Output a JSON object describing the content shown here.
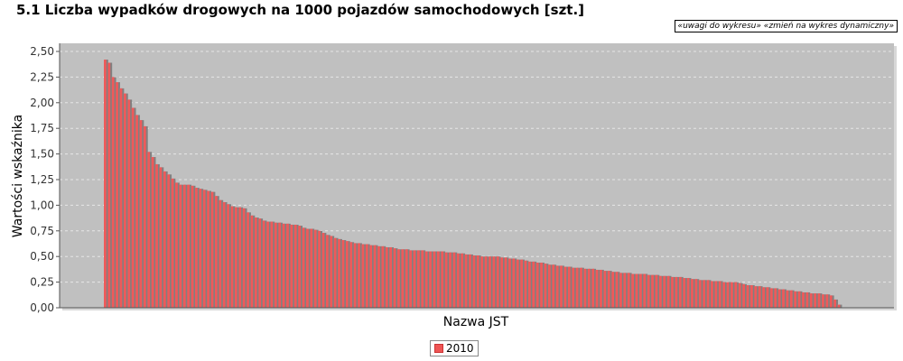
{
  "title": "5.1 Liczba wypadków drogowych  na 1000 pojazdów samochodowych [szt.]",
  "links": {
    "notes": "«uwagi do wykresu»",
    "dynamic": "«zmień na wykres dynamiczny»"
  },
  "colors": {
    "plot_bg": "#c0c0c0",
    "bar": "#ee5a5a",
    "bar_highlight": "#808080",
    "grid": "#e6e6e6"
  },
  "chart_data": {
    "type": "bar",
    "title": "5.1 Liczba wypadków drogowych  na 1000 pojazdów samochodowych [szt.]",
    "xlabel": "Nazwa JST",
    "ylabel": "Wartości wskaźnika",
    "ylim": [
      0,
      2.5
    ],
    "yticks": [
      "0,00",
      "0,25",
      "0,50",
      "0,75",
      "1,00",
      "1,25",
      "1,50",
      "1,75",
      "2,00",
      "2,25",
      "2,50"
    ],
    "grid": true,
    "legend_position": "bottom-center",
    "series": [
      {
        "name": "2010",
        "values": [
          2.42,
          2.39,
          2.25,
          2.2,
          2.14,
          2.09,
          2.03,
          1.95,
          1.88,
          1.83,
          1.77,
          1.52,
          1.47,
          1.4,
          1.37,
          1.33,
          1.3,
          1.26,
          1.22,
          1.2,
          1.2,
          1.2,
          1.19,
          1.17,
          1.16,
          1.15,
          1.14,
          1.13,
          1.09,
          1.05,
          1.03,
          1.01,
          0.99,
          0.98,
          0.98,
          0.97,
          0.93,
          0.9,
          0.88,
          0.87,
          0.85,
          0.84,
          0.84,
          0.83,
          0.83,
          0.82,
          0.82,
          0.81,
          0.81,
          0.8,
          0.78,
          0.77,
          0.77,
          0.76,
          0.75,
          0.73,
          0.71,
          0.7,
          0.68,
          0.67,
          0.66,
          0.65,
          0.64,
          0.63,
          0.63,
          0.62,
          0.62,
          0.61,
          0.61,
          0.6,
          0.6,
          0.59,
          0.59,
          0.58,
          0.57,
          0.57,
          0.57,
          0.56,
          0.56,
          0.56,
          0.56,
          0.55,
          0.55,
          0.55,
          0.55,
          0.55,
          0.54,
          0.54,
          0.54,
          0.53,
          0.53,
          0.52,
          0.52,
          0.51,
          0.51,
          0.5,
          0.5,
          0.5,
          0.5,
          0.5,
          0.49,
          0.49,
          0.48,
          0.48,
          0.47,
          0.47,
          0.46,
          0.45,
          0.45,
          0.44,
          0.44,
          0.43,
          0.42,
          0.42,
          0.41,
          0.41,
          0.4,
          0.4,
          0.39,
          0.39,
          0.39,
          0.38,
          0.38,
          0.38,
          0.37,
          0.37,
          0.36,
          0.36,
          0.35,
          0.35,
          0.34,
          0.34,
          0.34,
          0.33,
          0.33,
          0.33,
          0.33,
          0.32,
          0.32,
          0.32,
          0.31,
          0.31,
          0.31,
          0.3,
          0.3,
          0.3,
          0.29,
          0.29,
          0.28,
          0.28,
          0.27,
          0.27,
          0.27,
          0.26,
          0.26,
          0.26,
          0.25,
          0.25,
          0.25,
          0.25,
          0.24,
          0.23,
          0.22,
          0.22,
          0.21,
          0.21,
          0.2,
          0.2,
          0.19,
          0.19,
          0.18,
          0.18,
          0.17,
          0.17,
          0.16,
          0.16,
          0.15,
          0.15,
          0.14,
          0.14,
          0.14,
          0.13,
          0.13,
          0.12,
          0.08,
          0.03
        ]
      }
    ]
  }
}
